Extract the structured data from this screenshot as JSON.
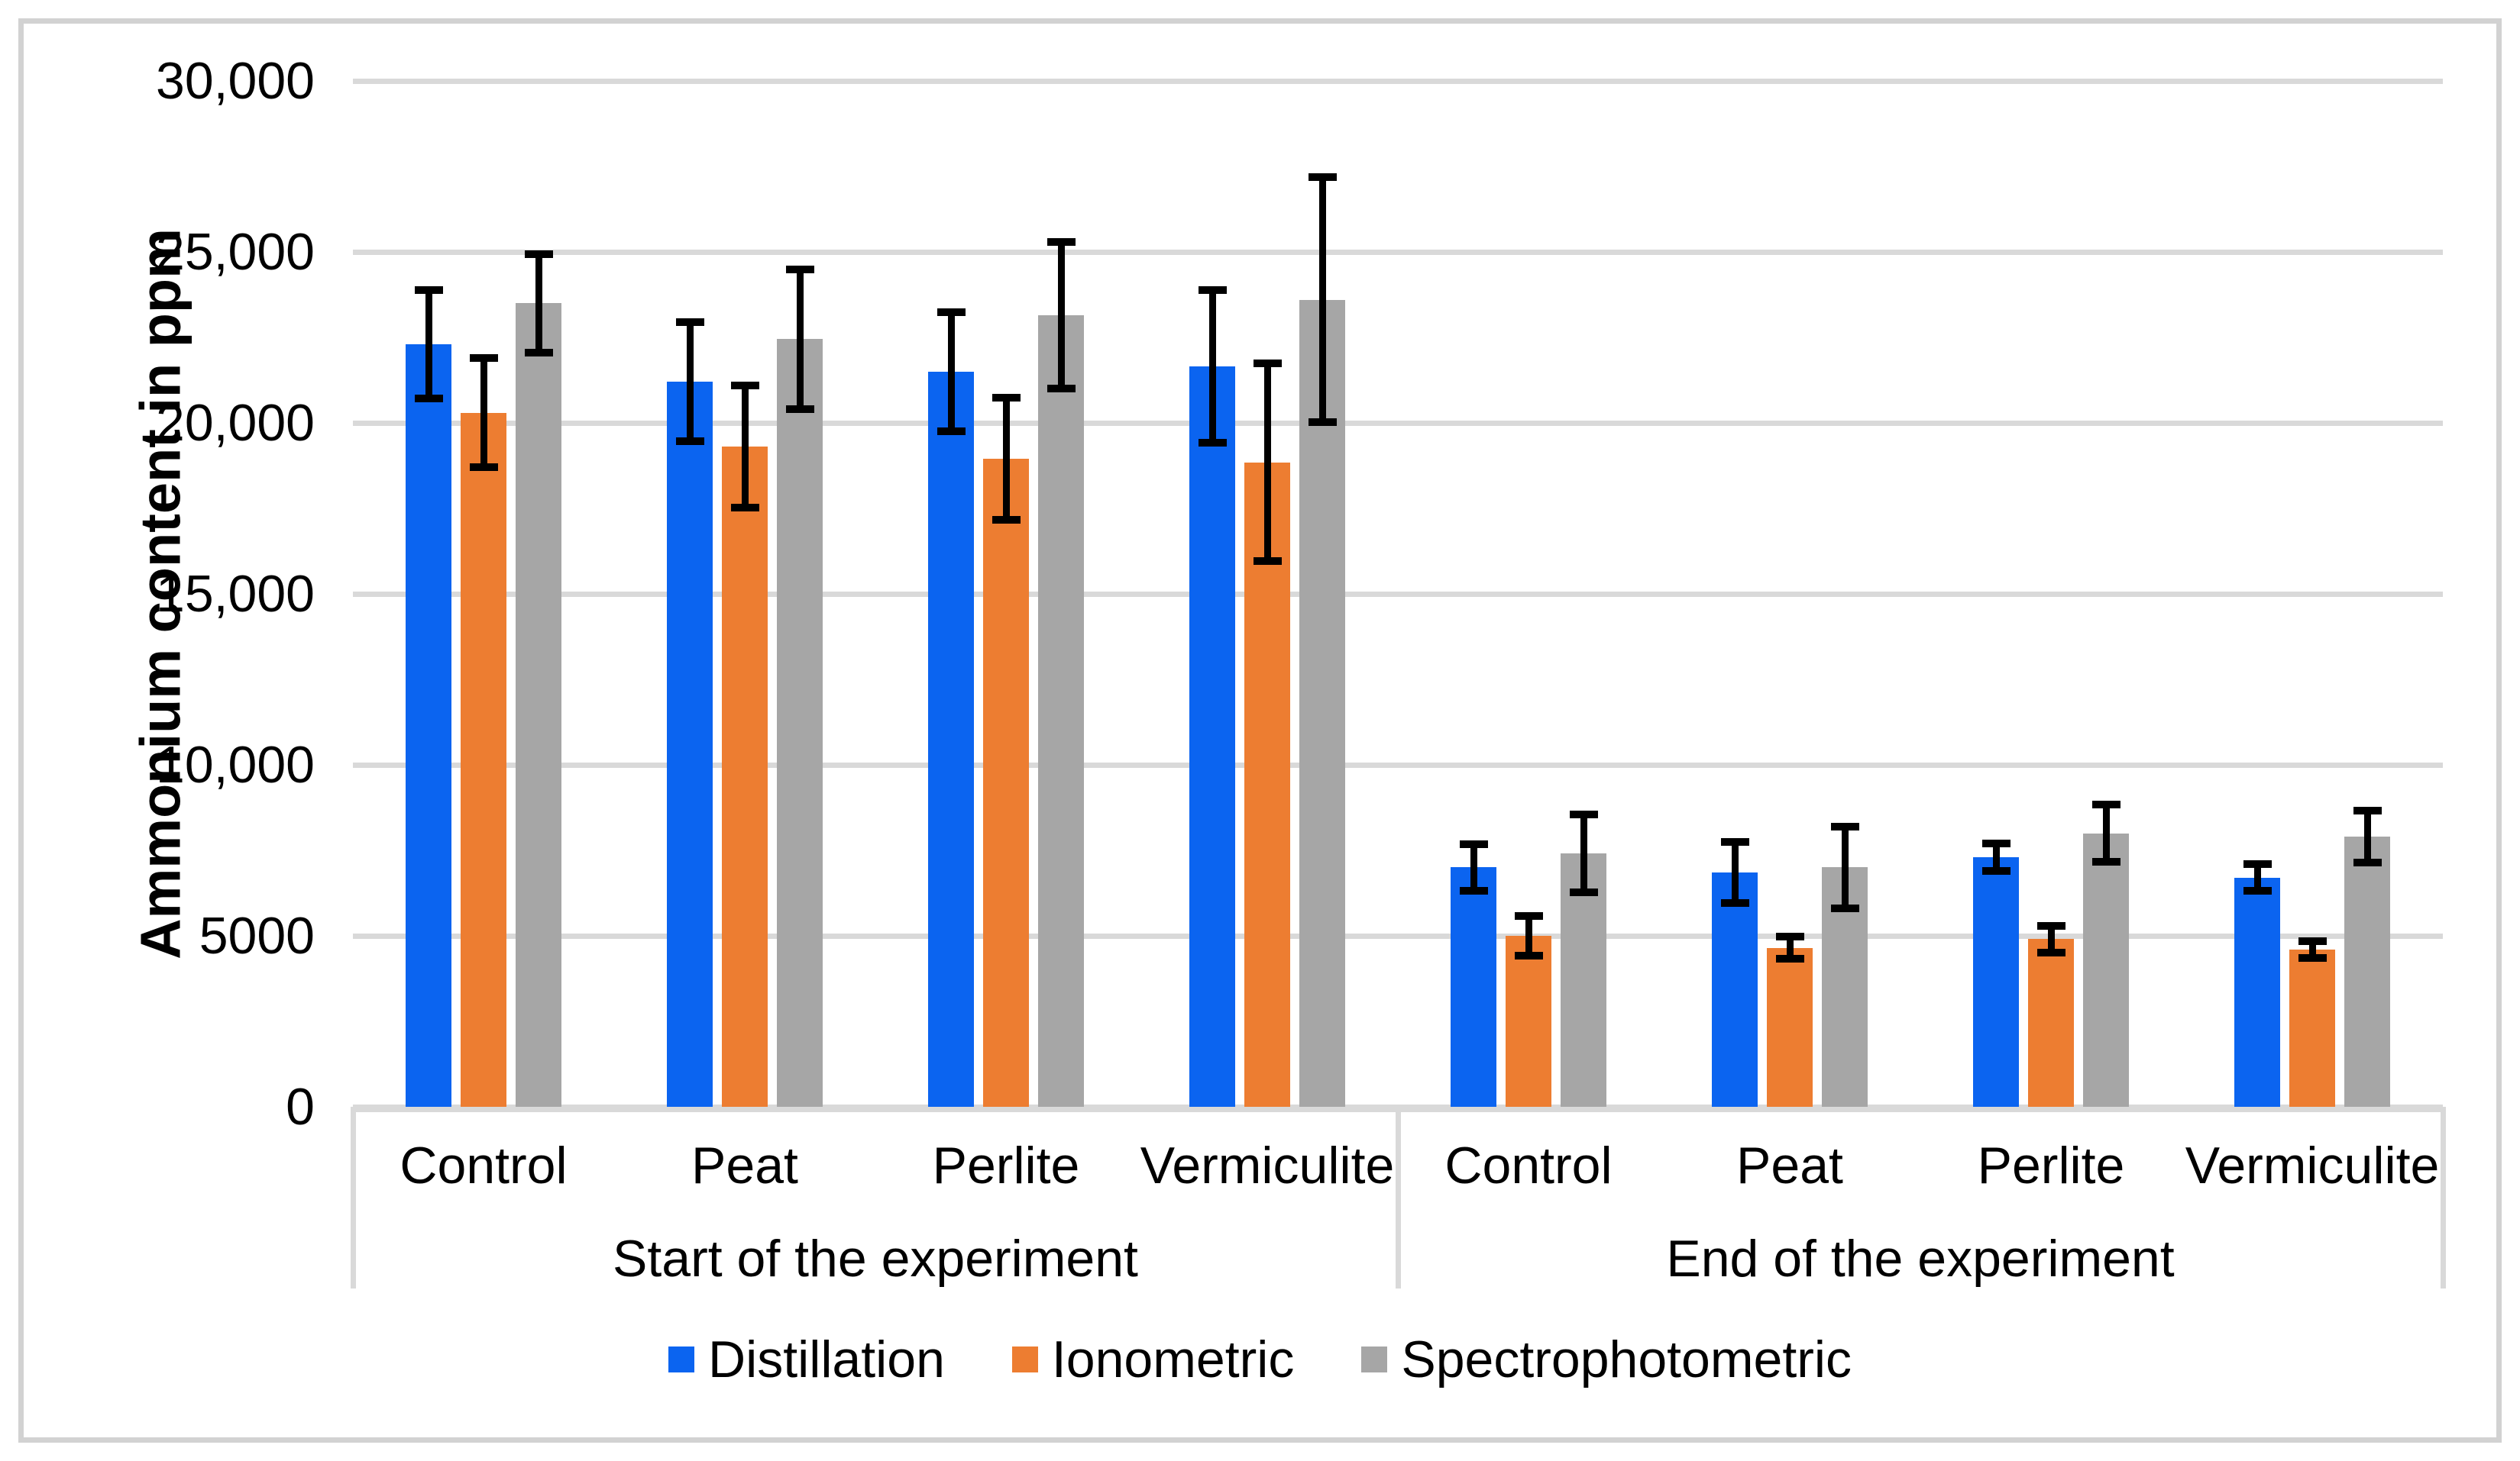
{
  "figure": {
    "background": "#ffffff",
    "border_color": "#d2d2d2"
  },
  "chart_data": {
    "type": "bar",
    "title": "",
    "ylabel": "Ammonium content in ppm",
    "xlabel": "",
    "ylim": [
      0,
      30000
    ],
    "y_tick_values": [
      30000,
      25000,
      20000,
      15000,
      10000,
      5000,
      0
    ],
    "y_tick_labels": [
      "30,000",
      "25,000",
      "20,000",
      "15,000",
      "10,000",
      "5000",
      "0"
    ],
    "gridlines": true,
    "gridline_color": "#d9d9d9",
    "error_bar_color": "#000000",
    "legend_position": "bottom",
    "sections": [
      {
        "label": "Start of the experiment",
        "categories": [
          "Control",
          "Peat",
          "Perlite",
          "Vermiculite"
        ]
      },
      {
        "label": "End of the experiment",
        "categories": [
          "Control",
          "Peat",
          "Perlite",
          "Vermiculite"
        ]
      }
    ],
    "series": [
      {
        "name": "Distillation",
        "color": "#0b64f0",
        "values": [
          22300,
          21200,
          21500,
          21650,
          7000,
          6850,
          7300,
          6700
        ],
        "errors": [
          1700,
          1850,
          1850,
          2350,
          800,
          1000,
          520,
          500
        ]
      },
      {
        "name": "Ionometric",
        "color": "#ed7d31",
        "values": [
          20300,
          19300,
          18950,
          18850,
          5000,
          4650,
          4900,
          4600
        ],
        "errors": [
          1700,
          1900,
          1900,
          3000,
          700,
          430,
          500,
          360
        ]
      },
      {
        "name": "Spectrophotometric",
        "color": "#a6a6a6",
        "values": [
          23500,
          22450,
          23150,
          23600,
          7400,
          7000,
          8000,
          7900
        ],
        "errors": [
          1550,
          2150,
          2250,
          3700,
          1250,
          1300,
          950,
          870
        ]
      }
    ]
  }
}
